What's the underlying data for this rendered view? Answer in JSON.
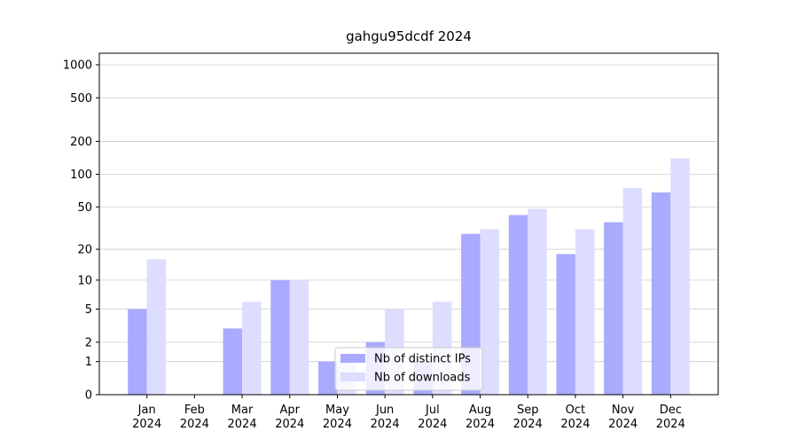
{
  "chart_data": {
    "type": "bar",
    "title": "gahgu95dcdf 2024",
    "categories": [
      "Jan\n2024",
      "Feb\n2024",
      "Mar\n2024",
      "Apr\n2024",
      "May\n2024",
      "Jun\n2024",
      "Jul\n2024",
      "Aug\n2024",
      "Sep\n2024",
      "Oct\n2024",
      "Nov\n2024",
      "Dec\n2024"
    ],
    "series": [
      {
        "name": "Nb of distinct IPs",
        "color": "#aaaaff",
        "values": [
          5,
          0,
          3,
          10,
          1,
          2,
          1,
          28,
          42,
          18,
          36,
          68
        ]
      },
      {
        "name": "Nb of downloads",
        "color": "#ddddff",
        "values": [
          16,
          0,
          6,
          10,
          1,
          5,
          6,
          31,
          48,
          31,
          75,
          140
        ]
      }
    ],
    "yscale": "log1p",
    "ylim": [
      0,
      1273
    ],
    "yticks": [
      0,
      1,
      2,
      5,
      10,
      20,
      50,
      100,
      200,
      500,
      1000
    ],
    "grid": true,
    "legend": "lower center"
  }
}
